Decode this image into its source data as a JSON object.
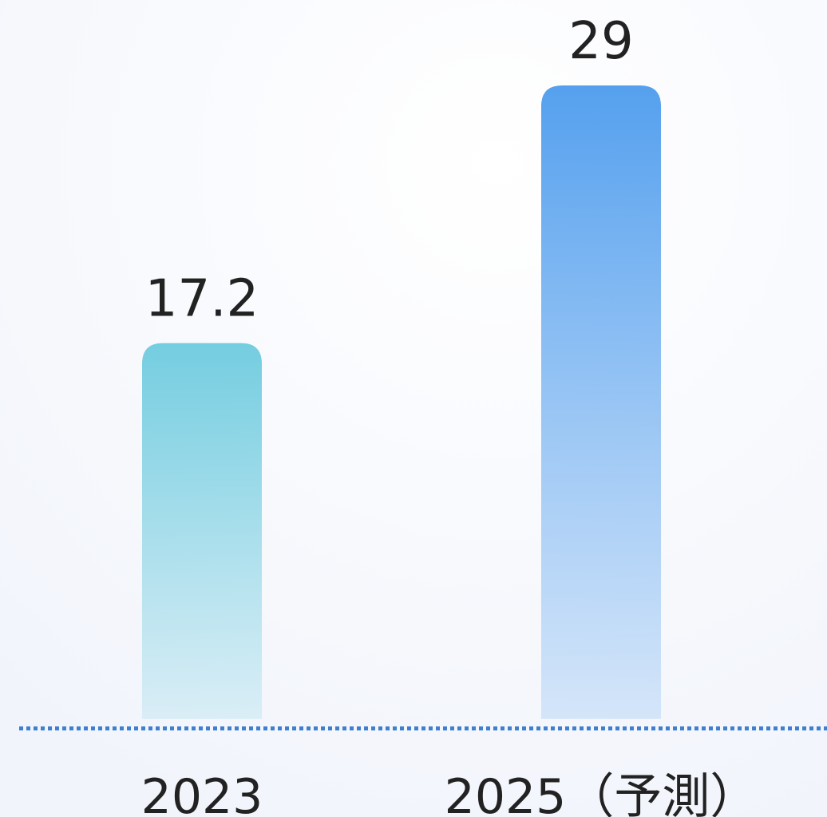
{
  "chart_data": {
    "type": "bar",
    "categories": [
      "2023",
      "2025（予測）"
    ],
    "values": [
      17.2,
      29
    ],
    "colors": [
      "#74cde0",
      "#55a0ee"
    ]
  }
}
